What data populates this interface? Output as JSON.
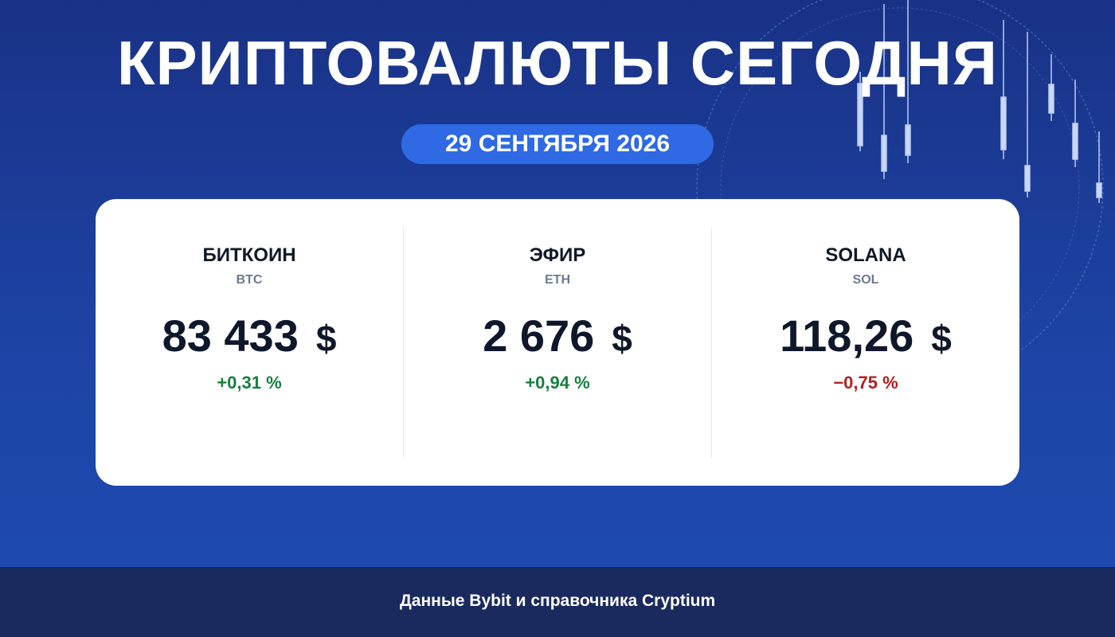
{
  "header": {
    "title": "КРИПТОВАЛЮТЫ СЕГОДНЯ",
    "date": "29 СЕНТЯБРЯ 2026"
  },
  "cards": [
    {
      "name": "БИТКОИН",
      "ticker": "BTC",
      "price": "83 433",
      "currency": "$",
      "change": "+0,31 %"
    },
    {
      "name": "ЭФИР",
      "ticker": "ETH",
      "price": "2 676",
      "currency": "$",
      "change": "+0,94 %"
    },
    {
      "name": "SOLANA",
      "ticker": "SOL",
      "price": "118,26",
      "currency": "$",
      "change": "−0,75 %"
    }
  ],
  "footer": {
    "source": "Данные Bybit и справочника Cryptium"
  }
}
